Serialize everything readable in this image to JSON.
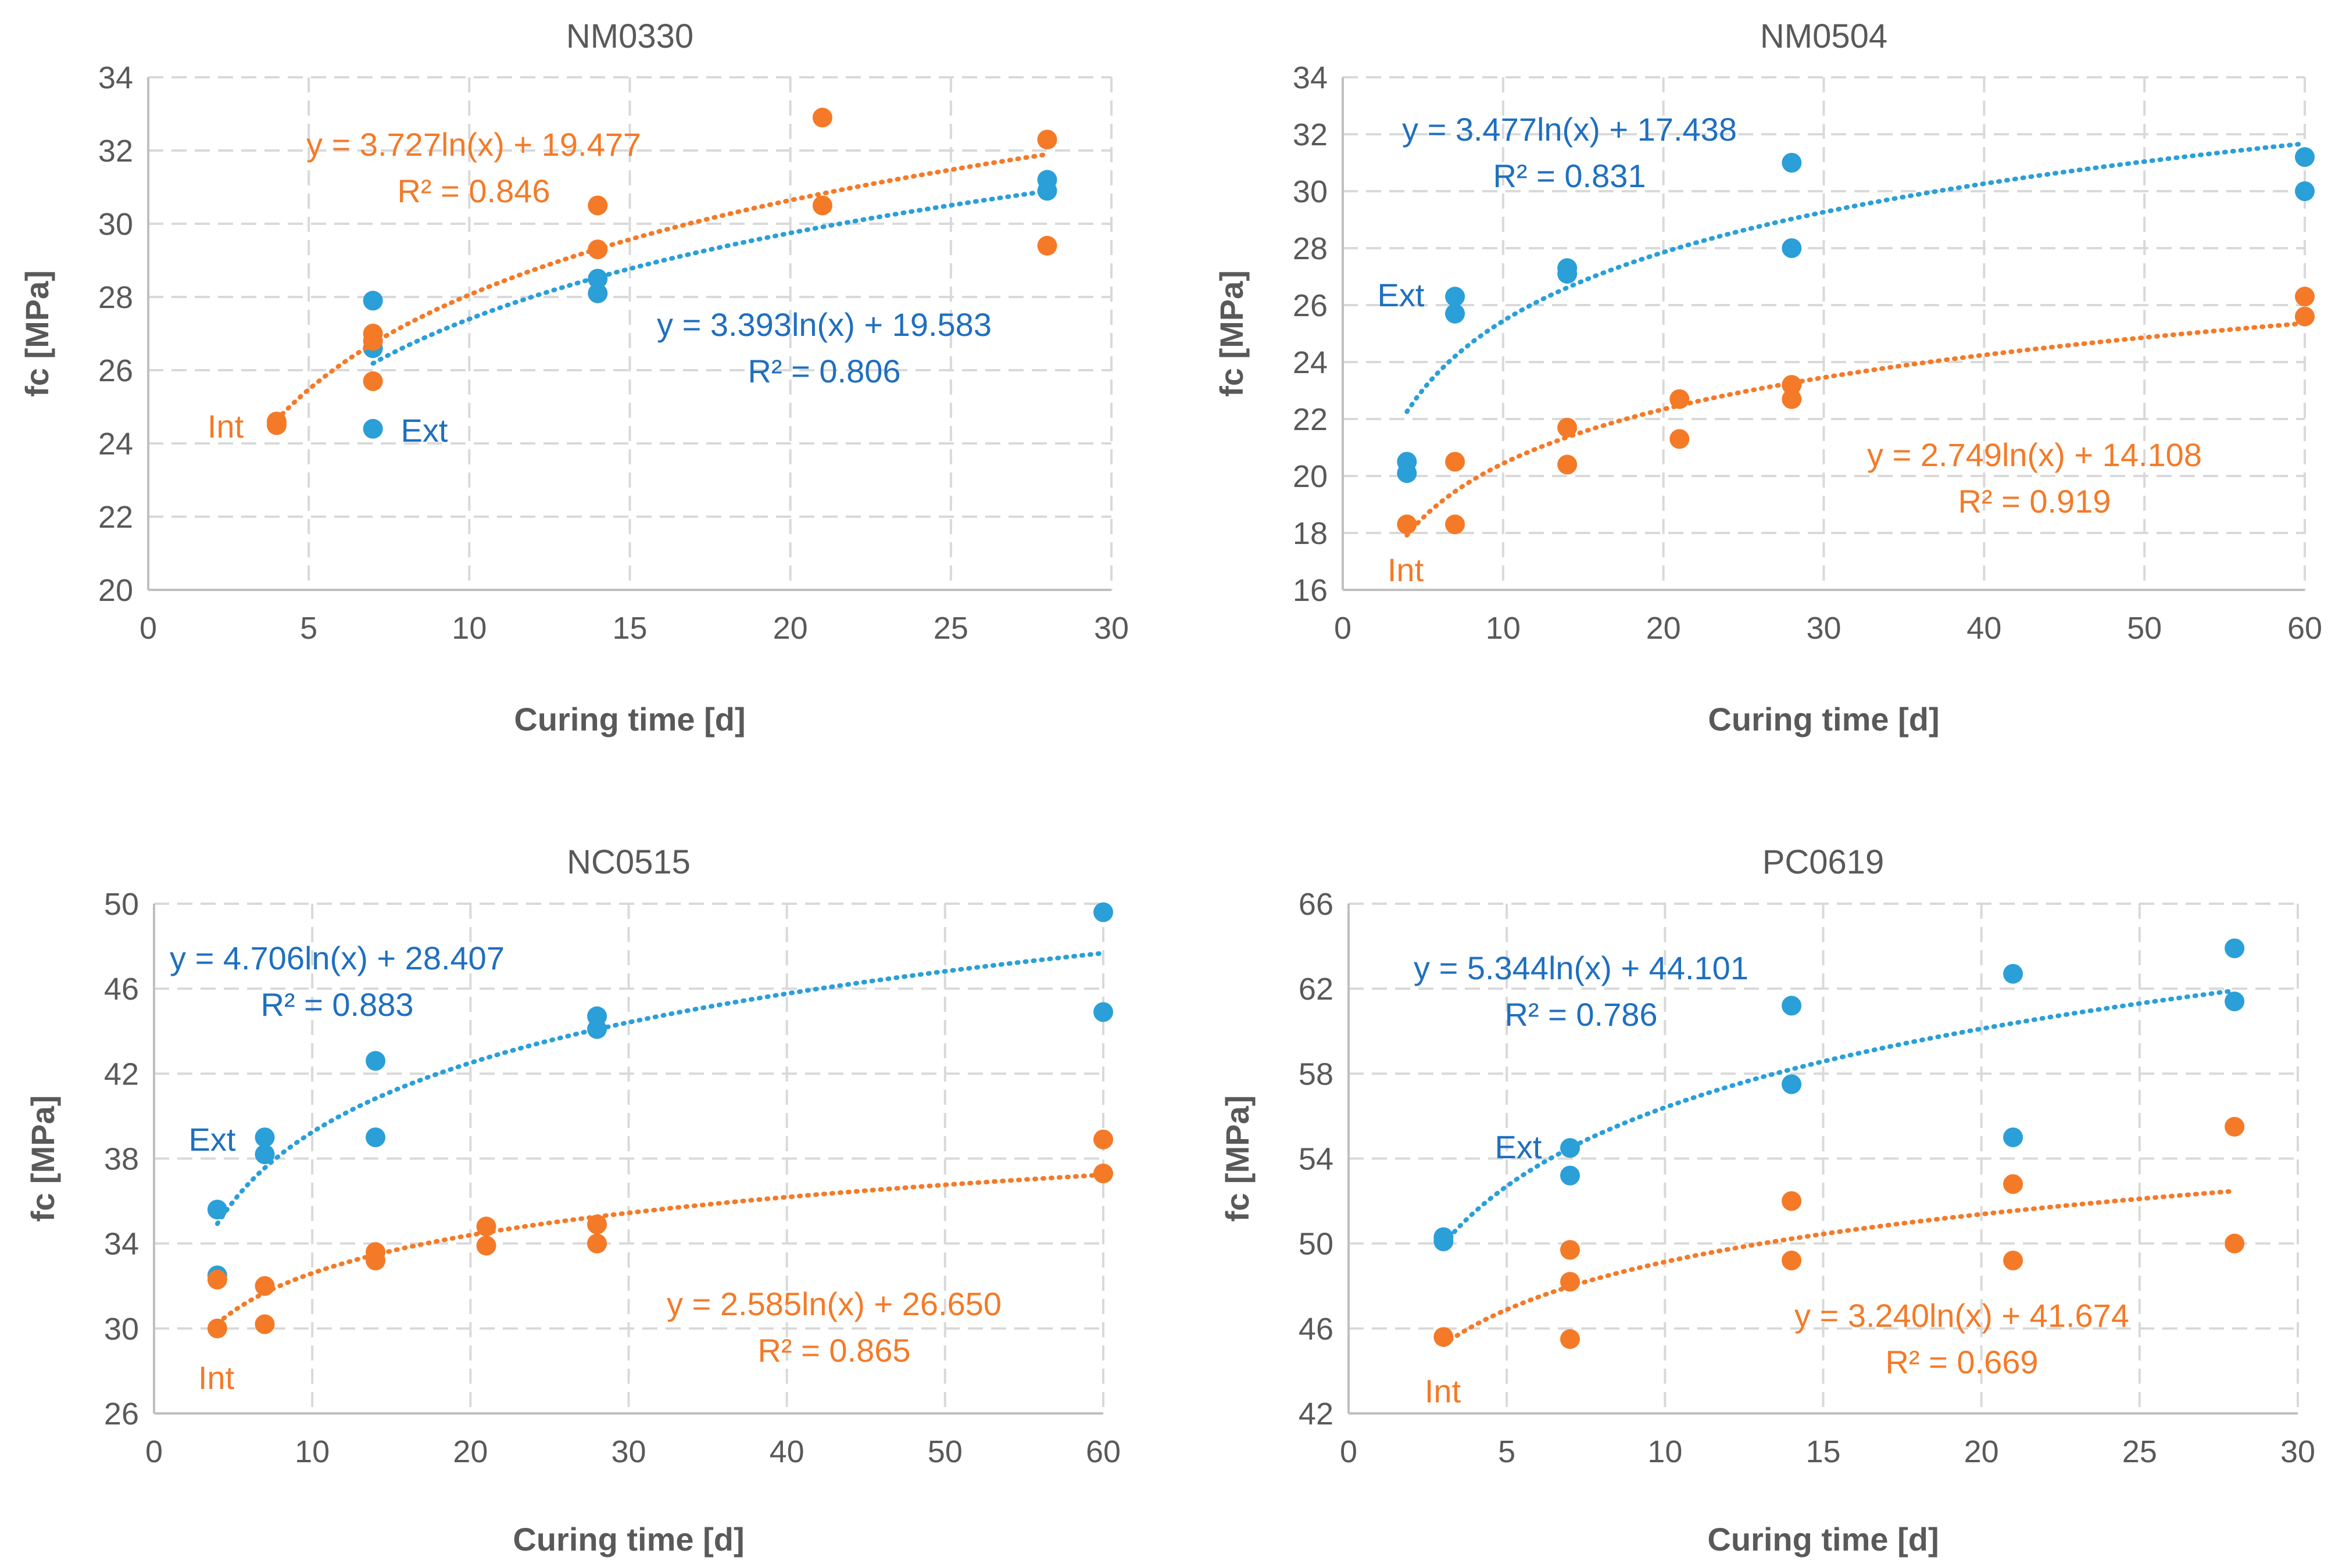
{
  "colors": {
    "ext": "#2a9fd8",
    "int": "#f47a28",
    "ext_text": "#1f6fbf",
    "int_text": "#f47a28",
    "grid": "#d9d9d9",
    "text": "#595959"
  },
  "chart_data": [
    {
      "type": "scatter",
      "title": "NM0330",
      "xlabel": "Curing time [d]",
      "ylabel": "fc [MPa]",
      "xlim": [
        0,
        30
      ],
      "ylim": [
        20,
        34
      ],
      "xticks": [
        0,
        5,
        10,
        15,
        20,
        25,
        30
      ],
      "yticks": [
        20,
        22,
        24,
        26,
        28,
        30,
        32,
        34
      ],
      "grid": true,
      "series": [
        {
          "name": "Ext",
          "color": "ext",
          "points": [
            [
              7,
              27.9
            ],
            [
              7,
              26.6
            ],
            [
              7,
              24.4
            ],
            [
              14,
              28.5
            ],
            [
              14,
              28.1
            ],
            [
              28,
              31.2
            ],
            [
              28,
              30.9
            ]
          ],
          "trend": {
            "a": 3.393,
            "b": 19.583,
            "from": 7,
            "to": 28,
            "equation": "y = 3.393ln(x) + 19.583",
            "r2": "R² = 0.806"
          }
        },
        {
          "name": "Int",
          "color": "int",
          "points": [
            [
              4,
              24.6
            ],
            [
              4,
              24.5
            ],
            [
              7,
              27.0
            ],
            [
              7,
              26.8
            ],
            [
              7,
              25.7
            ],
            [
              14,
              30.5
            ],
            [
              14,
              29.3
            ],
            [
              21,
              32.9
            ],
            [
              21,
              30.5
            ],
            [
              28,
              32.3
            ],
            [
              28,
              29.4
            ]
          ],
          "trend": {
            "a": 3.727,
            "b": 19.477,
            "from": 4,
            "to": 28,
            "equation": "y = 3.727ln(x) + 19.477",
            "r2": "R² = 0.846"
          }
        }
      ]
    },
    {
      "type": "scatter",
      "title": "NM0504",
      "xlabel": "Curing time [d]",
      "ylabel": "fc [MPa]",
      "xlim": [
        0,
        60
      ],
      "ylim": [
        16,
        34
      ],
      "xticks": [
        0,
        10,
        20,
        30,
        40,
        50,
        60
      ],
      "yticks": [
        16,
        18,
        20,
        22,
        24,
        26,
        28,
        30,
        32,
        34
      ],
      "grid": true,
      "series": [
        {
          "name": "Ext",
          "color": "ext",
          "points": [
            [
              4,
              20.5
            ],
            [
              4,
              20.1
            ],
            [
              7,
              26.3
            ],
            [
              7,
              25.7
            ],
            [
              14,
              27.3
            ],
            [
              14,
              27.1
            ],
            [
              28,
              31.0
            ],
            [
              28,
              28.0
            ],
            [
              60,
              31.2
            ],
            [
              60,
              30.0
            ]
          ],
          "trend": {
            "a": 3.477,
            "b": 17.438,
            "from": 4,
            "to": 60,
            "equation": "y = 3.477ln(x) + 17.438",
            "r2": "R² = 0.831"
          }
        },
        {
          "name": "Int",
          "color": "int",
          "points": [
            [
              4,
              18.3
            ],
            [
              7,
              20.5
            ],
            [
              7,
              18.3
            ],
            [
              14,
              21.7
            ],
            [
              14,
              20.4
            ],
            [
              21,
              22.7
            ],
            [
              21,
              21.3
            ],
            [
              28,
              23.2
            ],
            [
              28,
              22.7
            ],
            [
              60,
              26.3
            ],
            [
              60,
              25.6
            ]
          ],
          "trend": {
            "a": 2.749,
            "b": 14.108,
            "from": 4,
            "to": 60,
            "equation": "y = 2.749ln(x) + 14.108",
            "r2": "R² = 0.919"
          }
        }
      ]
    },
    {
      "type": "scatter",
      "title": "NC0515",
      "xlabel": "Curing time [d]",
      "ylabel": "fc [MPa]",
      "xlim": [
        0,
        60
      ],
      "ylim": [
        26,
        50
      ],
      "xticks": [
        0,
        10,
        20,
        30,
        40,
        50,
        60
      ],
      "yticks": [
        26,
        30,
        34,
        38,
        42,
        46,
        50
      ],
      "grid": true,
      "series": [
        {
          "name": "Ext",
          "color": "ext",
          "points": [
            [
              4,
              35.6
            ],
            [
              4,
              32.5
            ],
            [
              7,
              39.0
            ],
            [
              7,
              38.2
            ],
            [
              14,
              42.6
            ],
            [
              14,
              39.0
            ],
            [
              28,
              44.7
            ],
            [
              28,
              44.1
            ],
            [
              60,
              49.6
            ],
            [
              60,
              44.9
            ]
          ],
          "trend": {
            "a": 4.706,
            "b": 28.407,
            "from": 4,
            "to": 60,
            "equation": "y = 4.706ln(x) + 28.407",
            "r2": "R² = 0.883"
          }
        },
        {
          "name": "Int",
          "color": "int",
          "points": [
            [
              4,
              32.3
            ],
            [
              4,
              30.0
            ],
            [
              7,
              32.0
            ],
            [
              7,
              30.2
            ],
            [
              14,
              33.6
            ],
            [
              14,
              33.2
            ],
            [
              21,
              34.8
            ],
            [
              21,
              33.9
            ],
            [
              28,
              34.9
            ],
            [
              28,
              34.0
            ],
            [
              60,
              38.9
            ],
            [
              60,
              37.3
            ]
          ],
          "trend": {
            "a": 2.585,
            "b": 26.65,
            "from": 4,
            "to": 60,
            "equation": "y = 2.585ln(x) + 26.650",
            "r2": "R² = 0.865"
          }
        }
      ]
    },
    {
      "type": "scatter",
      "title": "PC0619",
      "xlabel": "Curing time [d]",
      "ylabel": "fc [MPa]",
      "xlim": [
        0,
        30
      ],
      "ylim": [
        42,
        66
      ],
      "xticks": [
        0,
        5,
        10,
        15,
        20,
        25,
        30
      ],
      "yticks": [
        42,
        46,
        50,
        54,
        58,
        62,
        66
      ],
      "grid": true,
      "series": [
        {
          "name": "Ext",
          "color": "ext",
          "points": [
            [
              3,
              50.3
            ],
            [
              3,
              50.1
            ],
            [
              7,
              54.5
            ],
            [
              7,
              53.2
            ],
            [
              14,
              61.2
            ],
            [
              14,
              57.5
            ],
            [
              21,
              62.7
            ],
            [
              21,
              55.0
            ],
            [
              28,
              63.9
            ],
            [
              28,
              61.4
            ]
          ],
          "trend": {
            "a": 5.344,
            "b": 44.101,
            "from": 3,
            "to": 28,
            "equation": "y = 5.344ln(x) + 44.101",
            "r2": "R² = 0.786"
          }
        },
        {
          "name": "Int",
          "color": "int",
          "points": [
            [
              3,
              45.6
            ],
            [
              7,
              49.7
            ],
            [
              7,
              48.2
            ],
            [
              7,
              45.5
            ],
            [
              14,
              52.0
            ],
            [
              14,
              49.2
            ],
            [
              21,
              52.8
            ],
            [
              21,
              49.2
            ],
            [
              28,
              55.5
            ],
            [
              28,
              50.0
            ]
          ],
          "trend": {
            "a": 3.24,
            "b": 41.674,
            "from": 3,
            "to": 28,
            "equation": "y = 3.240ln(x) + 41.674",
            "r2": "R² = 0.669"
          }
        }
      ]
    }
  ]
}
